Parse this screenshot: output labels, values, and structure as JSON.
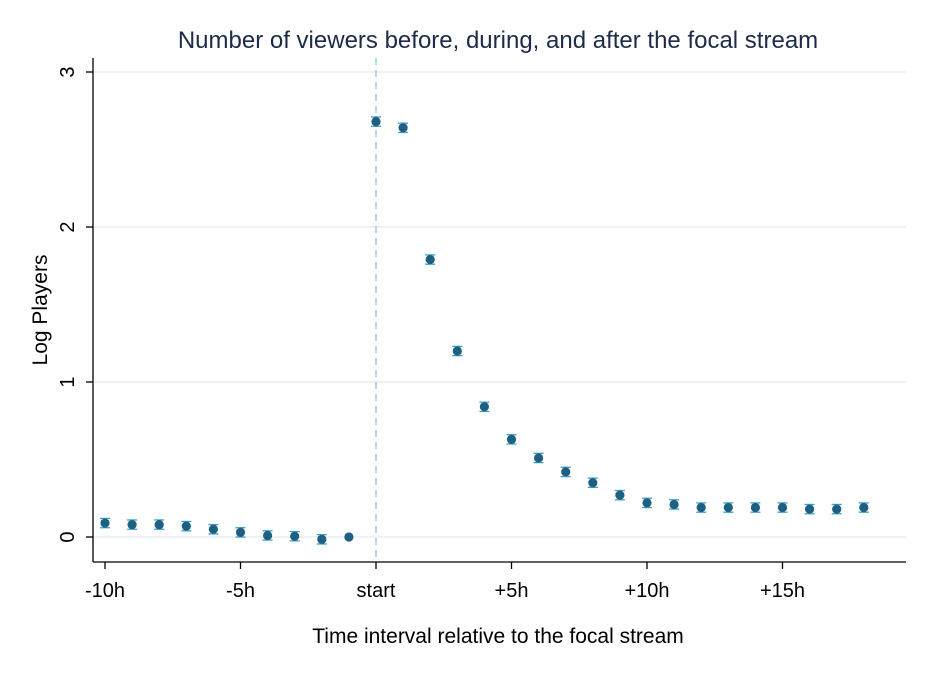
{
  "chart_data": {
    "type": "scatter",
    "title": "Number of viewers before, during, and after the focal stream",
    "xlabel": "Time interval relative to the focal stream",
    "ylabel": "Log Players",
    "xlim": [
      -10.5,
      19.5
    ],
    "ylim": [
      -0.15,
      3.1
    ],
    "x_ticks": [
      {
        "value": -10,
        "label": "-10h"
      },
      {
        "value": -5,
        "label": "-5h"
      },
      {
        "value": 0,
        "label": "start"
      },
      {
        "value": 5,
        "label": "+5h"
      },
      {
        "value": 10,
        "label": "+10h"
      },
      {
        "value": 15,
        "label": "+15h"
      }
    ],
    "y_ticks": [
      {
        "value": 0,
        "label": "0"
      },
      {
        "value": 1,
        "label": "1"
      },
      {
        "value": 2,
        "label": "2"
      },
      {
        "value": 3,
        "label": "3"
      }
    ],
    "reference_line_x": 0,
    "grid": true,
    "colors": {
      "marker": "#1f5f82",
      "error_bar": "#3aa0c8",
      "reference_line": "#8ec3dc",
      "grid": "#e8eef2",
      "title": "#1e2a4a"
    },
    "series": [
      {
        "x": [
          -10,
          -9,
          -8,
          -7,
          -6,
          -5,
          -4,
          -3,
          -2,
          -1,
          0,
          1,
          2,
          3,
          4,
          5,
          6,
          7,
          8,
          9,
          10,
          11,
          12,
          13,
          14,
          15,
          16,
          17,
          18
        ],
        "y": [
          0.09,
          0.08,
          0.08,
          0.07,
          0.05,
          0.03,
          0.01,
          0.005,
          -0.015,
          0.0,
          2.68,
          2.64,
          1.79,
          1.2,
          0.84,
          0.63,
          0.51,
          0.42,
          0.35,
          0.27,
          0.22,
          0.21,
          0.19,
          0.19,
          0.19,
          0.19,
          0.18,
          0.18,
          0.19
        ],
        "err": [
          0.03,
          0.03,
          0.03,
          0.03,
          0.03,
          0.03,
          0.03,
          0.03,
          0.03,
          0.0,
          0.03,
          0.03,
          0.03,
          0.03,
          0.03,
          0.03,
          0.03,
          0.03,
          0.03,
          0.03,
          0.03,
          0.03,
          0.03,
          0.03,
          0.03,
          0.03,
          0.03,
          0.03,
          0.03
        ]
      }
    ]
  }
}
